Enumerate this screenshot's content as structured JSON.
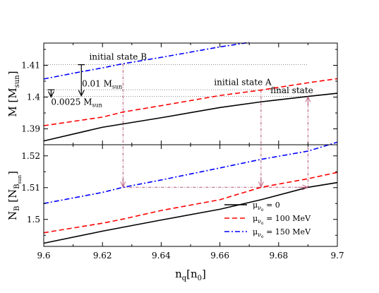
{
  "chart_data": {
    "type": "line",
    "x_axis": {
      "label_main": "n",
      "label_sub": "q",
      "label_bracket_open": "[n",
      "label_bracket_sub": "0",
      "label_bracket_close": "]",
      "range": [
        9.6,
        9.7
      ],
      "ticks": [
        "9.6",
        "9.62",
        "9.64",
        "9.66",
        "9.68",
        "9.7"
      ]
    },
    "series": [
      {
        "name": "μ_ν̄e = 0",
        "color": "#000000",
        "dash": "solid"
      },
      {
        "name": "μ_ν̄e = 100 MeV",
        "color": "#ff0000",
        "dash": "dashed"
      },
      {
        "name": "μ_ν̄e = 150 MeV",
        "color": "#0000ff",
        "dash": "dashdot"
      }
    ],
    "legend": {
      "placement": "bottom-right",
      "prefix": "μ",
      "sub_nu": "ν",
      "sub_e": "e",
      "entries": [
        " = 0",
        " = 100 MeV",
        " = 150 MeV"
      ]
    },
    "panels": [
      {
        "id": "top",
        "y_label_main": "M",
        "y_label_bracket_open": " [M",
        "y_label_bracket_sub": "sun",
        "y_label_bracket_close": "]",
        "y_range": [
          1.385,
          1.417
        ],
        "y_ticks": [
          "1.39",
          "1.4",
          "1.41"
        ],
        "y_tick_values": [
          1.39,
          1.4,
          1.41
        ],
        "lines": [
          {
            "series": 0,
            "x": [
              9.6,
              9.62,
              9.64,
              9.66,
              9.674,
              9.69,
              9.7
            ],
            "y": [
              1.3862,
              1.3905,
              1.3935,
              1.3967,
              1.3985,
              1.4002,
              1.4012
            ]
          },
          {
            "series": 1,
            "x": [
              9.6,
              9.62,
              9.627,
              9.64,
              9.66,
              9.674,
              9.69,
              9.7
            ],
            "y": [
              1.391,
              1.3937,
              1.3953,
              1.3973,
              1.4005,
              1.4022,
              1.4045,
              1.4058
            ]
          },
          {
            "series": 2,
            "x": [
              9.6,
              9.61,
              9.62,
              9.627,
              9.64,
              9.66,
              9.67
            ],
            "y": [
              1.4057,
              1.4075,
              1.4092,
              1.4105,
              1.4125,
              1.4158,
              1.4172
            ]
          }
        ],
        "annotations": [
          {
            "text": "initial state B",
            "x": 9.6155,
            "y": 1.4118
          },
          {
            "text": "initial state A",
            "x": 9.658,
            "y": 1.4038
          },
          {
            "text": "final state",
            "x": 9.6772,
            "y": 1.4012
          },
          {
            "text_main": "0.01 M",
            "text_sub": "sun",
            "x": 9.613,
            "y": 1.4033
          },
          {
            "text_main": "0.0025 M",
            "text_sub": "sun",
            "x": 9.6025,
            "y": 1.3976
          }
        ]
      },
      {
        "id": "bottom",
        "y_label_main": "N",
        "y_label_sub": "B",
        "y_label_bracket_open": " [N",
        "y_label_bracket_sub": "B",
        "y_label_bracket_subsub": "sun",
        "y_label_bracket_close": "]",
        "y_range": [
          1.4915,
          1.5235
        ],
        "y_ticks": [
          "1.5",
          "1.51",
          "1.52"
        ],
        "y_tick_values": [
          1.5,
          1.51,
          1.52
        ],
        "lines": [
          {
            "series": 0,
            "x": [
              9.6,
              9.62,
              9.64,
              9.66,
              9.674,
              9.69,
              9.7
            ],
            "y": [
              1.4925,
              1.4963,
              1.4998,
              1.5032,
              1.5062,
              1.5101,
              1.5116
            ]
          },
          {
            "series": 1,
            "x": [
              9.6,
              9.62,
              9.627,
              9.64,
              9.66,
              9.674,
              9.69,
              9.7
            ],
            "y": [
              1.4958,
              1.4988,
              1.5001,
              1.5028,
              1.5062,
              1.5101,
              1.5128,
              1.5148
            ]
          },
          {
            "series": 2,
            "x": [
              9.6,
              9.62,
              9.627,
              9.64,
              9.66,
              9.674,
              9.69,
              9.7
            ],
            "y": [
              1.505,
              1.5085,
              1.5101,
              1.5124,
              1.5162,
              1.5189,
              1.5215,
              1.5243
            ]
          }
        ]
      }
    ],
    "reference_lines": {
      "horizontal_dotted_top": [
        1.4102,
        1.4023,
        1.4002
      ],
      "horizontal_dotted_x_end": 9.69,
      "vertical_dotted": [
        {
          "x": 9.627,
          "y_top": 1.4105,
          "y_bottom_value": 1.5101
        },
        {
          "x": 9.674,
          "y_top": 1.4022,
          "y_bottom_value": 1.5101
        },
        {
          "x": 9.69,
          "y_top": 1.4002,
          "y_bottom_value": 1.5101
        }
      ],
      "bottom_transition": {
        "from_x": 9.627,
        "to_x": 9.69,
        "y": 1.5101
      }
    },
    "mass_arrows": [
      {
        "x": 9.6128,
        "y_from": 1.4102,
        "y_to": 1.4002
      },
      {
        "x": 9.6025,
        "y_from": 1.4023,
        "y_to": 1.3998
      }
    ]
  }
}
